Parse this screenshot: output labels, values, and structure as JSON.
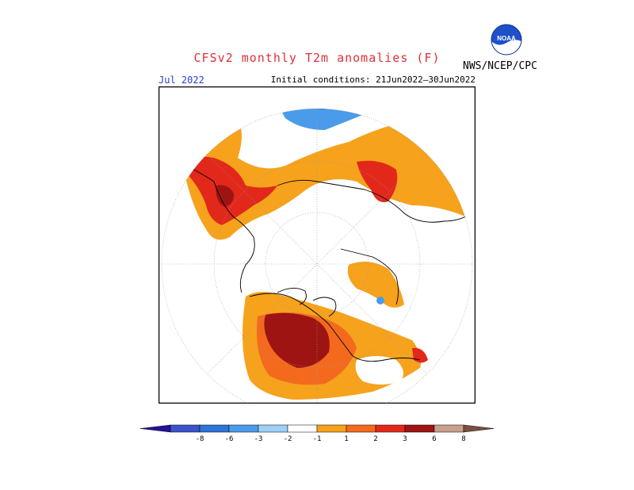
{
  "header": {
    "title": "CFSv2 monthly T2m anomalies (F)",
    "valid_month": "Jul 2022",
    "initial_conditions": "Initial conditions: 21Jun2022–30Jun2022",
    "agency": "NWS/NCEP/CPC",
    "logo_icon": "noaa-logo-icon",
    "logo_text": "NOAA"
  },
  "colorbar": {
    "labels": [
      "-8",
      "-6",
      "-3",
      "-2",
      "-1",
      "1",
      "2",
      "3",
      "6",
      "8"
    ],
    "colors": [
      "#28109a",
      "#3c52c8",
      "#2f74d6",
      "#4a9cea",
      "#9dd0f6",
      "#ffffff",
      "#f6a21c",
      "#f36a1e",
      "#e2281a",
      "#9e1412",
      "#c8a08e",
      "#7a5044"
    ]
  },
  "legend_colors": {
    "cold_strong": "#3c5fd6",
    "cold_mid": "#4a9cea",
    "cold_light": "#9dd0f6",
    "warm_1": "#f6a21c",
    "warm_2": "#f36a1e",
    "warm_3": "#e2281a",
    "warm_6": "#9e1412"
  }
}
